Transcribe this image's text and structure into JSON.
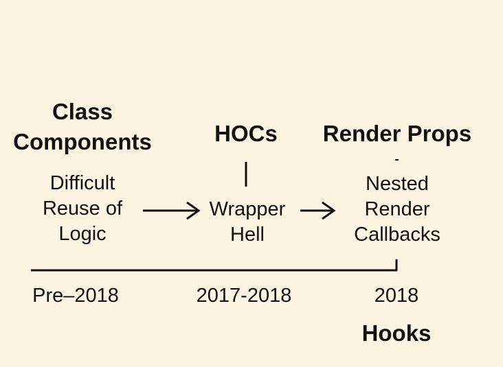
{
  "stages": [
    {
      "heading_lines": [
        "Class",
        "Components"
      ],
      "description_lines": [
        "Difficult",
        "Reuse of",
        "Logic"
      ],
      "year": "Pre–2018"
    },
    {
      "heading_lines": [
        "HOCs"
      ],
      "description_lines": [
        "Wrapper",
        "Hell"
      ],
      "year": "2017-2018"
    },
    {
      "heading_lines": [
        "Render Props"
      ],
      "description_lines": [
        "Nested",
        "Render",
        "Callbacks"
      ],
      "year": "2018"
    }
  ],
  "final": {
    "heading": "Hooks"
  },
  "colors": {
    "background": "#fdf5e2",
    "ink": "#111111"
  }
}
